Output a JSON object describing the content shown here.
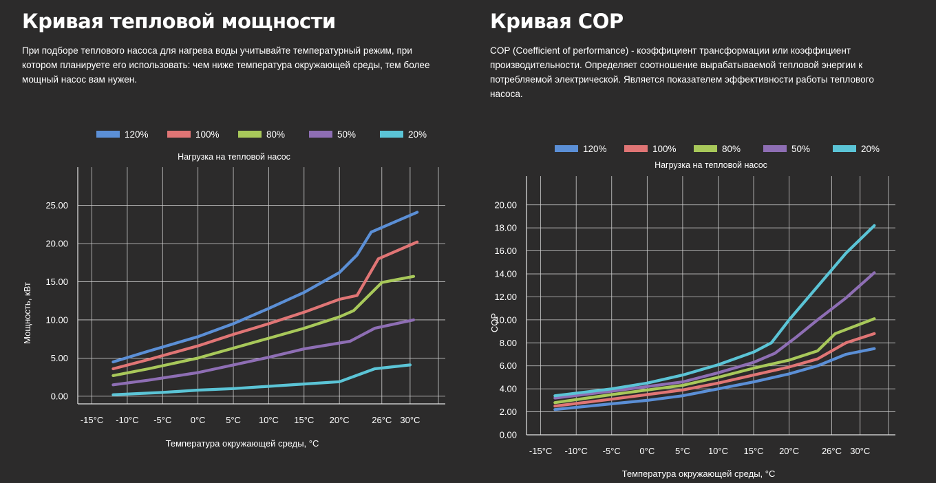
{
  "left": {
    "title": "Кривая тепловой мощности",
    "description": "При подборе теплового насоса для нагрева воды учитывайте температурный режим, при котором планируете его использовать: чем ниже температура окружающей среды, тем более мощный насос вам нужен."
  },
  "right": {
    "title": "Кривая COP",
    "description": "COP (Coefficient of performance) - коэффициент трансформации или коэффициент производительности. Определяет соотношение вырабатываемой тепловой энергии к потребляемой электрической. Является показателем эффективности работы теплового насоса."
  },
  "chart_data": [
    {
      "type": "line",
      "title": "Нагрузка на тепловой насос",
      "xlabel": "Температура окружающей среды, °C",
      "ylabel": "Мощность, кВт",
      "x_ticks": [
        "-15°C",
        "-10°C",
        "-5°C",
        "0°C",
        "5°C",
        "10°C",
        "15°C",
        "20°C",
        "26°C",
        "30°C"
      ],
      "y_ticks": [
        "0.00",
        "5.00",
        "10.00",
        "15.00",
        "20.00",
        "25.00"
      ],
      "xlim": [
        -17,
        34
      ],
      "ylim": [
        -1,
        30
      ],
      "grid": true,
      "legend_position": "top",
      "series": [
        {
          "name": "120%",
          "color": "#5b8fd6",
          "x": [
            -12,
            -7,
            0,
            5,
            10,
            15,
            20,
            22.5,
            24.5,
            31
          ],
          "y": [
            4.5,
            5.9,
            7.8,
            9.5,
            11.5,
            13.6,
            16.2,
            18.5,
            21.5,
            24.1
          ]
        },
        {
          "name": "100%",
          "color": "#e07575",
          "x": [
            -12,
            -7,
            0,
            5,
            10,
            15,
            20,
            22.5,
            25.5,
            31
          ],
          "y": [
            3.6,
            4.8,
            6.6,
            8.1,
            9.5,
            11.0,
            12.7,
            13.2,
            18.0,
            20.2
          ]
        },
        {
          "name": "80%",
          "color": "#a8c85a",
          "x": [
            -12,
            -7,
            0,
            5,
            10,
            15,
            20,
            22,
            26,
            30.5
          ],
          "y": [
            2.7,
            3.6,
            5.0,
            6.3,
            7.6,
            8.9,
            10.4,
            11.2,
            14.9,
            15.7
          ]
        },
        {
          "name": "50%",
          "color": "#8e6eb4",
          "x": [
            -12,
            -7,
            0,
            5,
            10,
            15,
            21.5,
            25,
            30.5
          ],
          "y": [
            1.5,
            2.1,
            3.1,
            4.1,
            5.1,
            6.2,
            7.2,
            8.9,
            10.0
          ]
        },
        {
          "name": "20%",
          "color": "#5bc4d6",
          "x": [
            -12,
            -5,
            0,
            5,
            10,
            15,
            20,
            25,
            30
          ],
          "y": [
            0.2,
            0.5,
            0.8,
            1.0,
            1.3,
            1.6,
            1.9,
            3.6,
            4.1
          ]
        }
      ]
    },
    {
      "type": "line",
      "title": "Нагрузка на тепловой насос",
      "xlabel": "Температура окружающей среды, °C",
      "ylabel": "COP",
      "x_ticks": [
        "-15°C",
        "-10°C",
        "-5°C",
        "0°C",
        "5°C",
        "10°C",
        "15°C",
        "20°C",
        "26°C",
        "30°C"
      ],
      "y_ticks": [
        "0.00",
        "2.00",
        "4.00",
        "6.00",
        "8.00",
        "10.00",
        "12.00",
        "14.00",
        "16.00",
        "18.00",
        "20.00"
      ],
      "xlim": [
        -17,
        34
      ],
      "ylim": [
        0,
        22.5
      ],
      "grid": true,
      "legend_position": "top",
      "series": [
        {
          "name": "120%",
          "color": "#5b8fd6",
          "x": [
            -13,
            -5,
            0,
            5,
            10,
            15,
            20,
            24,
            28,
            32
          ],
          "y": [
            2.2,
            2.7,
            3.0,
            3.4,
            4.0,
            4.6,
            5.3,
            6.0,
            7.0,
            7.5
          ]
        },
        {
          "name": "100%",
          "color": "#e07575",
          "x": [
            -13,
            -5,
            0,
            5,
            10,
            15,
            20,
            24,
            28,
            32
          ],
          "y": [
            2.5,
            3.1,
            3.5,
            3.9,
            4.5,
            5.2,
            5.9,
            6.6,
            8.0,
            8.8
          ]
        },
        {
          "name": "80%",
          "color": "#a8c85a",
          "x": [
            -13,
            -5,
            0,
            5,
            10,
            15,
            20,
            24,
            26.5,
            32
          ],
          "y": [
            2.8,
            3.5,
            3.9,
            4.3,
            5.0,
            5.8,
            6.5,
            7.3,
            8.8,
            10.1
          ]
        },
        {
          "name": "50%",
          "color": "#8e6eb4",
          "x": [
            -13,
            -5,
            0,
            5,
            10,
            15,
            18,
            21,
            24,
            28,
            32
          ],
          "y": [
            3.2,
            3.8,
            4.2,
            4.6,
            5.4,
            6.3,
            7.1,
            8.5,
            10.0,
            11.9,
            14.1
          ]
        },
        {
          "name": "20%",
          "color": "#5bc4d6",
          "x": [
            -13,
            -5,
            0,
            5,
            10,
            15,
            17.5,
            20,
            24,
            28,
            32
          ],
          "y": [
            3.4,
            4.0,
            4.5,
            5.2,
            6.1,
            7.2,
            8.0,
            10.0,
            12.9,
            15.8,
            18.2
          ]
        }
      ]
    }
  ]
}
